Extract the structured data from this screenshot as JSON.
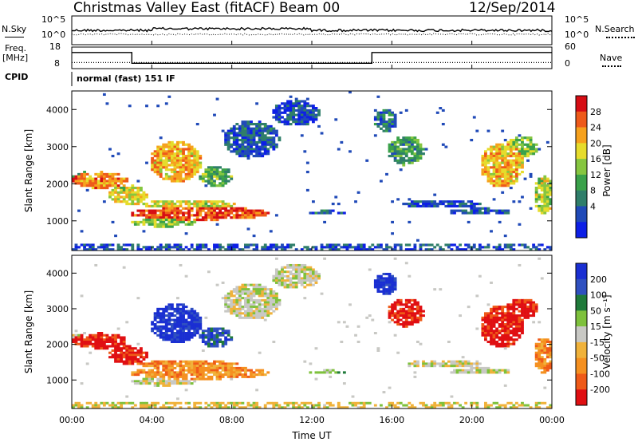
{
  "header": {
    "station": "Christmas Valley East (fitACF)",
    "beam": "Beam 00",
    "date": "12/Sep/2014"
  },
  "panels": {
    "nsky": {
      "left_label": "N.Sky",
      "left_ticks": [
        "10^5",
        "10^0"
      ],
      "right_label": "N.Search",
      "right_ticks": [
        "10^5",
        "10^0"
      ]
    },
    "freq": {
      "left_label_1": "Freq.",
      "left_label_2": "[MHz]",
      "left_ticks": [
        "18",
        "8"
      ],
      "right_label": "Nave",
      "right_ticks": [
        "60",
        "0"
      ]
    },
    "cpid": {
      "label": "CPID",
      "text": "normal (fast) 151 IF"
    }
  },
  "chart_data": [
    {
      "type": "line",
      "name": "nsky-search-panel",
      "description": "Noise (sky and search) time series, log scale",
      "x_range": [
        "00:00",
        "00:00"
      ],
      "y_scale": "log",
      "y_ticks": [
        "10^5",
        "10^0"
      ]
    },
    {
      "type": "line",
      "name": "frequency-nave-panel",
      "x_range": [
        "00:00",
        "00:00"
      ],
      "frequency_mhz": {
        "x_hours": [
          0,
          3,
          3,
          15,
          15,
          24
        ],
        "values": [
          15.5,
          15.5,
          10.5,
          10.5,
          15.5,
          15.5
        ]
      },
      "nave": {
        "approx_value": 17
      },
      "left_ticks": [
        "18",
        "8"
      ],
      "right_ticks": [
        "60",
        "0"
      ]
    },
    {
      "type": "heatmap",
      "name": "power-panel",
      "ylabel": "Slant Range [km]",
      "y_ticks": [
        "1000",
        "2000",
        "3000",
        "4000"
      ],
      "ylim": [
        200,
        4500
      ],
      "colorbar": {
        "label": "Power [dB]",
        "ticks": [
          "4",
          "8",
          "12",
          "16",
          "20",
          "24",
          "28"
        ],
        "colors": [
          "#0d1fe6",
          "#204ab8",
          "#2f7e6a",
          "#3aa14a",
          "#86c640",
          "#e6dc2c",
          "#f6a11d",
          "#ee5a1a",
          "#d60d14"
        ]
      }
    },
    {
      "type": "heatmap",
      "name": "velocity-panel",
      "ylabel": "Slant Range [km]",
      "y_ticks": [
        "1000",
        "2000",
        "3000",
        "4000"
      ],
      "ylim": [
        200,
        4500
      ],
      "xlabel": "Time UT",
      "x_ticks": [
        "00:00",
        "04:00",
        "08:00",
        "12:00",
        "16:00",
        "20:00",
        "00:00"
      ],
      "colorbar": {
        "label": "Velocity [m s⁻¹]",
        "ticks": [
          "200",
          "100",
          "50",
          "15",
          "-15",
          "-50",
          "-100",
          "-200"
        ],
        "colors": [
          "#1a2fd2",
          "#2f50c0",
          "#1f7a3a",
          "#7ec13c",
          "#c8c8c4",
          "#f0b23a",
          "#f59020",
          "#ef5a18",
          "#e00f12"
        ]
      }
    }
  ]
}
